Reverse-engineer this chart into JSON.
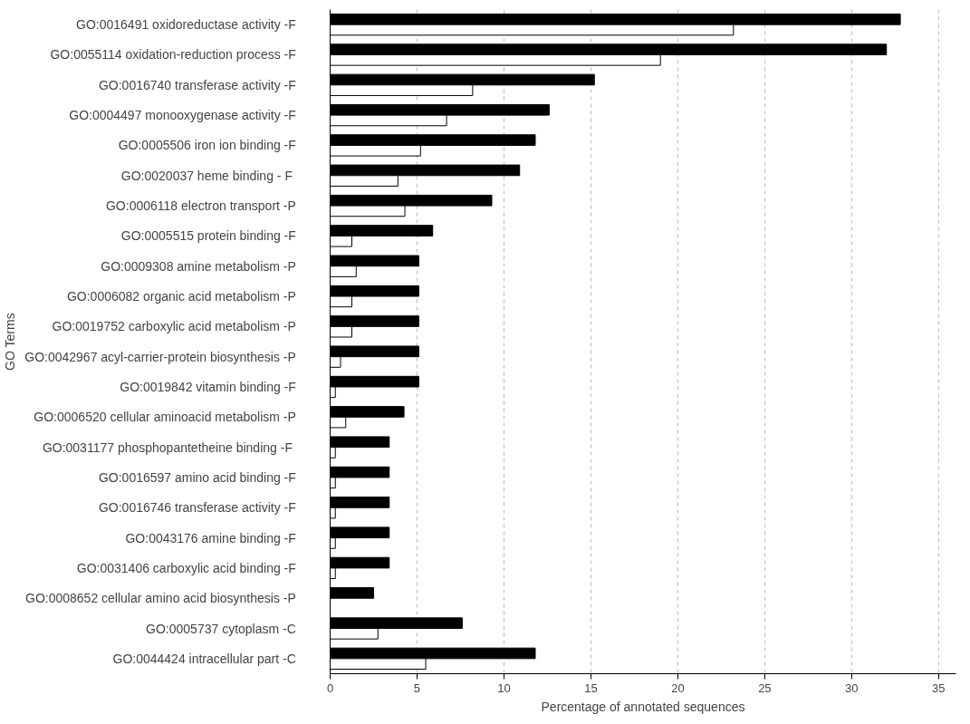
{
  "chart_data": {
    "type": "bar",
    "orientation": "horizontal",
    "xlabel": "Percentage of annotated sequences",
    "ylabel": "GO Terms",
    "categories": [
      "GO:0016491    oxidoreductase activity -F",
      "GO:0055114    oxidation-reduction process -F",
      "GO:0016740    transferase activity -F",
      "GO:0004497    monooxygenase activity -F",
      "GO:0005506    iron ion binding -F",
      "GO:0020037     heme binding - F",
      "GO:0006118    electron transport -P",
      "GO:0005515    protein binding -F",
      "GO:0009308    amine metabolism -P",
      "GO:0006082    organic acid metabolism -P",
      "GO:0019752    carboxylic acid metabolism -P",
      "GO:0042967    acyl-carrier-protein biosynthesis -P",
      "GO:0019842    vitamin binding -F",
      "GO:0006520    cellular aminoacid metabolism -P",
      "GO:0031177    phosphopantetheine binding  -F",
      "GO:0016597    amino acid binding -F",
      "GO:0016746    transferase activity -F",
      "GO:0043176    amine binding -F",
      "GO:0031406    carboxylic acid binding -F",
      "GO:0008652    cellular amino acid biosynthesis -P",
      "GO:0005737    cytoplasm -C",
      "GO:0044424    intracellular part -C"
    ],
    "series": [
      {
        "color": "#000000",
        "values": [
          32.8,
          32.0,
          15.2,
          12.6,
          11.8,
          10.9,
          9.3,
          5.9,
          5.1,
          5.1,
          5.1,
          5.1,
          5.1,
          4.25,
          3.4,
          3.4,
          3.4,
          3.4,
          3.4,
          2.5,
          7.6,
          11.8
        ]
      },
      {
        "color": "#ffffff",
        "values": [
          23.2,
          19.0,
          8.2,
          6.7,
          5.2,
          3.9,
          4.3,
          1.25,
          1.5,
          1.25,
          1.25,
          0.6,
          0.3,
          0.9,
          0.3,
          0.3,
          0.3,
          0.3,
          0.3,
          null,
          2.75,
          5.5
        ]
      }
    ],
    "xlim": [
      0,
      36
    ],
    "xticks": [
      0,
      5,
      10,
      15,
      20,
      25,
      30,
      35
    ],
    "grid": "x"
  }
}
